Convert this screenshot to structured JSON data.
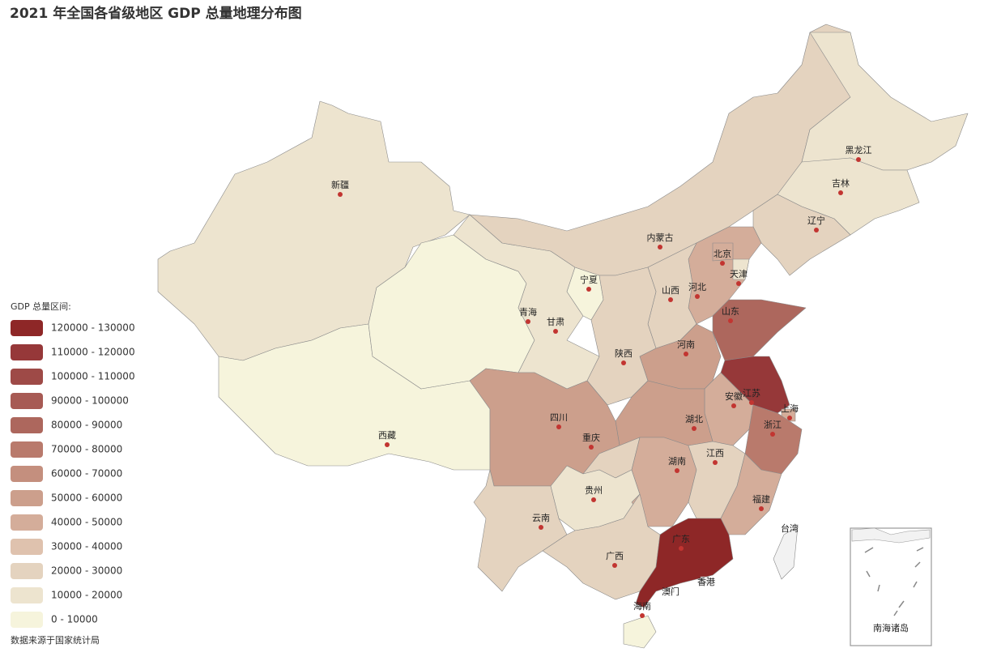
{
  "map": {
    "title": "2021 年全国各省级地区 GDP 总量地理分布图",
    "legend_title": "GDP 总量区间:",
    "source": "数据来源于国家统计局",
    "inset_label": "南海诸岛",
    "missing_color": "#f2f2f2",
    "pieces": [
      {
        "min": 120000,
        "max": 130000,
        "label": "120000 - 130000",
        "color": "#8e2727"
      },
      {
        "min": 110000,
        "max": 120000,
        "label": "110000 - 120000",
        "color": "#963839"
      },
      {
        "min": 100000,
        "max": 110000,
        "label": "100000 - 110000",
        "color": "#9e4a47"
      },
      {
        "min": 90000,
        "max": 100000,
        "label": "90000 - 100000",
        "color": "#a75a54"
      },
      {
        "min": 80000,
        "max": 90000,
        "label": "80000 - 90000",
        "color": "#ad675d"
      },
      {
        "min": 70000,
        "max": 80000,
        "label": "70000 - 80000",
        "color": "#b97a6c"
      },
      {
        "min": 60000,
        "max": 70000,
        "label": "60000 - 70000",
        "color": "#c48f7e"
      },
      {
        "min": 50000,
        "max": 60000,
        "label": "50000 - 60000",
        "color": "#cc9f8c"
      },
      {
        "min": 40000,
        "max": 50000,
        "label": "40000 - 50000",
        "color": "#d4ad9a"
      },
      {
        "min": 30000,
        "max": 40000,
        "label": "30000 - 40000",
        "color": "#dfc2ae"
      },
      {
        "min": 20000,
        "max": 30000,
        "label": "20000 - 30000",
        "color": "#e4d3bf"
      },
      {
        "min": 10000,
        "max": 20000,
        "label": "10000 - 20000",
        "color": "#ede4cf"
      },
      {
        "min": 0,
        "max": 10000,
        "label": "0 - 10000",
        "color": "#f6f4dc"
      }
    ],
    "regions": [
      {
        "name": "新疆",
        "value": 15984
      },
      {
        "name": "西藏",
        "value": 2080
      },
      {
        "name": "青海",
        "value": 3347
      },
      {
        "name": "甘肃",
        "value": 10243
      },
      {
        "name": "宁夏",
        "value": 4522
      },
      {
        "name": "内蒙古",
        "value": 20514
      },
      {
        "name": "黑龙江",
        "value": 14879
      },
      {
        "name": "吉林",
        "value": 13236
      },
      {
        "name": "辽宁",
        "value": 27584
      },
      {
        "name": "河北",
        "value": 40391
      },
      {
        "name": "北京",
        "value": 40270
      },
      {
        "name": "天津",
        "value": 15695
      },
      {
        "name": "山西",
        "value": 22590
      },
      {
        "name": "陕西",
        "value": 29801
      },
      {
        "name": "河南",
        "value": 58887
      },
      {
        "name": "山东",
        "value": 83096
      },
      {
        "name": "江苏",
        "value": 116364
      },
      {
        "name": "上海",
        "value": 43215
      },
      {
        "name": "安徽",
        "value": 42959
      },
      {
        "name": "浙江",
        "value": 73516
      },
      {
        "name": "湖北",
        "value": 50013
      },
      {
        "name": "四川",
        "value": 53851
      },
      {
        "name": "重庆",
        "value": 27894
      },
      {
        "name": "云南",
        "value": 27147
      },
      {
        "name": "贵州",
        "value": 19586
      },
      {
        "name": "湖南",
        "value": 46063
      },
      {
        "name": "江西",
        "value": 29620
      },
      {
        "name": "福建",
        "value": 48810
      },
      {
        "name": "广西",
        "value": 24741
      },
      {
        "name": "广东",
        "value": 124370
      },
      {
        "name": "海南",
        "value": 6475
      },
      {
        "name": "台湾",
        "value": null
      },
      {
        "name": "香港",
        "value": null
      },
      {
        "name": "澳门",
        "value": null
      }
    ]
  }
}
